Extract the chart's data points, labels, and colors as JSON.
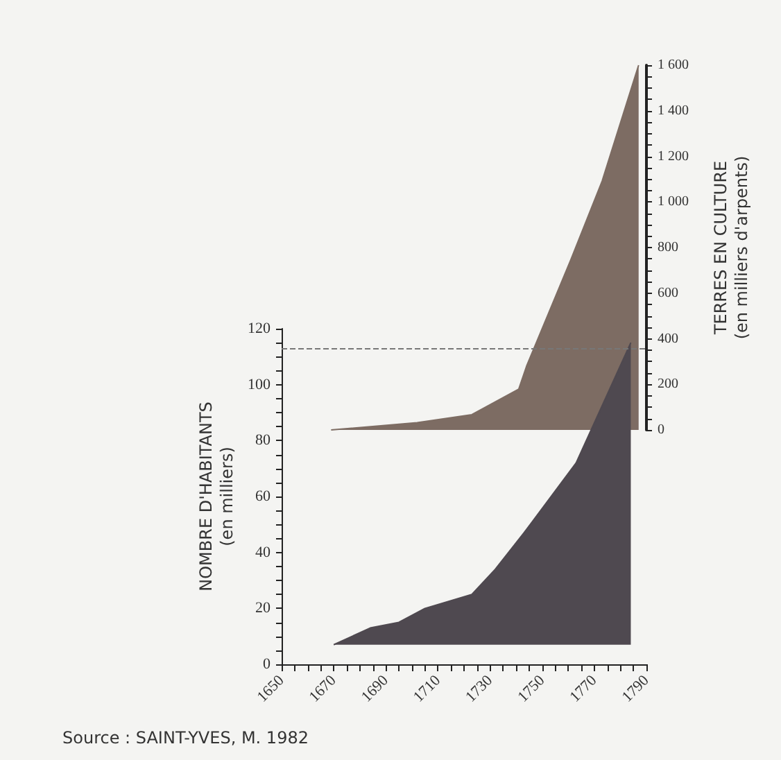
{
  "chart_data": {
    "type": "area",
    "ylabel": "NOMBRE D'HABITANTS\n(en milliers)",
    "y2label": "TERRES EN CULTURE\n(en milliers d'arpents)",
    "xlim": [
      1650,
      1790
    ],
    "xticks": [
      1650,
      1670,
      1690,
      1710,
      1730,
      1750,
      1770,
      1790
    ],
    "ylim": [
      0,
      120
    ],
    "yticks": [
      0,
      20,
      40,
      60,
      80,
      100,
      120
    ],
    "y2lim": [
      0,
      1600
    ],
    "y2ticks": [
      0,
      {
        "value": 200,
        "label": "200"
      },
      {
        "value": 400,
        "label": "400"
      },
      {
        "value": 600,
        "label": "600"
      },
      {
        "value": 800,
        "label": "800"
      },
      {
        "value": 1000,
        "label": "1 000"
      },
      {
        "value": 1200,
        "label": "1 200"
      },
      {
        "value": 1400,
        "label": "1 400"
      },
      {
        "value": 1600,
        "label": "1 600"
      }
    ],
    "series": [
      {
        "color": "#4f4950",
        "x": [
          1670,
          1684,
          1695,
          1705,
          1723,
          1732,
          1743,
          1763,
          1784
        ],
        "values": [
          7,
          13,
          15,
          20,
          25,
          34,
          47,
          72,
          115
        ]
      },
      {
        "color": "#7d6c63",
        "axis": "y2",
        "x": [
          1669,
          1702,
          1723,
          1741,
          1744,
          1761,
          1773,
          1787
        ],
        "values": [
          0,
          32,
          67,
          179,
          280,
          747,
          1092,
          1600
        ]
      }
    ],
    "ref_lines": [
      {
        "axis": "y",
        "value": 113,
        "color": "#777777",
        "line_style": "dashed"
      }
    ],
    "grid": false,
    "marker": "none",
    "annotations": [
      "Source : SAINT-YVES, M. 1982"
    ]
  }
}
